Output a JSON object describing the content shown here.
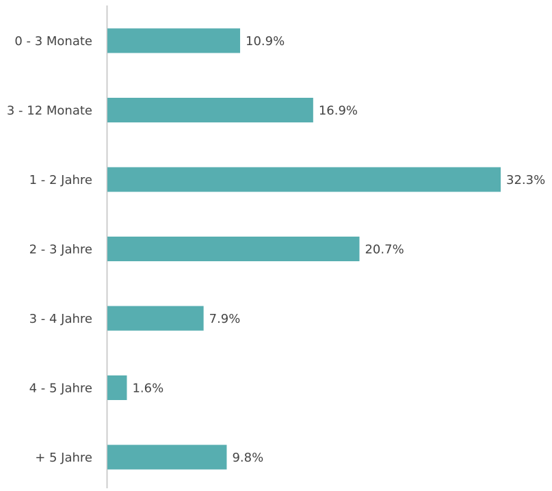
{
  "chart_data": {
    "type": "bar",
    "orientation": "horizontal",
    "categories": [
      "0 - 3 Monate",
      "3 - 12 Monate",
      "1 - 2 Jahre",
      "2 - 3 Jahre",
      "3 - 4 Jahre",
      "4 - 5 Jahre",
      "+ 5 Jahre"
    ],
    "values": [
      10.9,
      16.9,
      32.3,
      20.7,
      7.9,
      1.6,
      9.8
    ],
    "value_labels": [
      "10.9%",
      "16.9%",
      "32.3%",
      "20.7%",
      "7.9%",
      "1.6%",
      "9.8%"
    ],
    "unit": "%",
    "title": "",
    "xlabel": "",
    "ylabel": "",
    "xlim": [
      0,
      32.3
    ],
    "grid": false,
    "legend": "none"
  },
  "colors": {
    "bar": "#57aeb0",
    "axis": "#cccccc",
    "text": "#444444",
    "background": "#ffffff"
  }
}
